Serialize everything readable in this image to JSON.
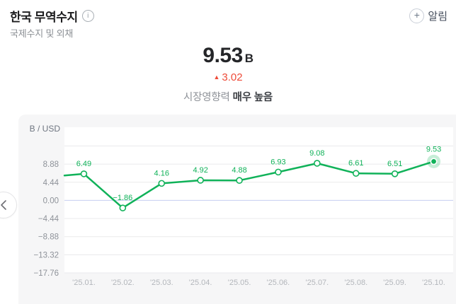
{
  "header": {
    "title": "한국 무역수지",
    "info_glyph": "i",
    "alarm_label": "알림",
    "plus_glyph": "+"
  },
  "subtitle": "국제수지 및 외채",
  "stats": {
    "value": "9.53",
    "unit": "B",
    "change_glyph": "▲",
    "change_value": "3.02",
    "change_direction": "up",
    "impact_label": "시장영향력",
    "impact_level": "매우 높음"
  },
  "colors": {
    "accent_green": "#10b259",
    "rise_red": "#ee4b39",
    "panel_bg": "#f6f6f7",
    "grid_line": "#eaeaec",
    "zero_line": "#c5cdf0",
    "tick_text": "#8e9299",
    "x_label_text": "#b3b6bb"
  },
  "nav": {
    "prev_glyph": "‹"
  },
  "chart_data": {
    "type": "line",
    "ylabel": "B / USD",
    "categories": [
      "'25.01.",
      "'25.02.",
      "'25.03.",
      "'25.04.",
      "'25.05.",
      "'25.06.",
      "'25.07.",
      "'25.08.",
      "'25.09.",
      "'25.10."
    ],
    "values": [
      6.49,
      -1.86,
      4.16,
      4.92,
      4.88,
      6.93,
      9.08,
      6.61,
      6.51,
      9.53
    ],
    "y_ticks": [
      8.88,
      4.44,
      0,
      -4.44,
      -8.88,
      -13.32,
      -17.76
    ],
    "ylim": [
      -17.76,
      17.9
    ],
    "grid": true,
    "zero_line_value": 0,
    "lead_in_value": 6.1,
    "highlight_last_point": true,
    "legend": "none",
    "line_color": "#10b259",
    "label_color": "#10b259"
  }
}
